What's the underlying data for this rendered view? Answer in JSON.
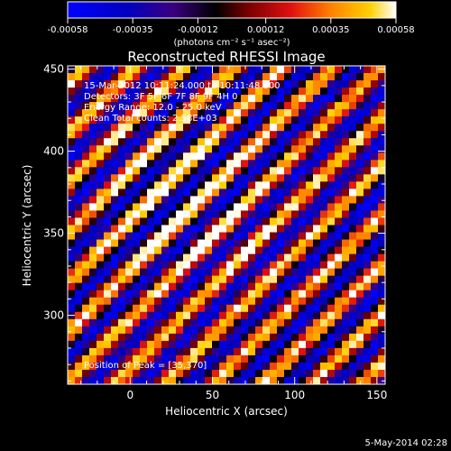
{
  "chart_data": {
    "type": "heatmap",
    "title": "Reconstructed RHESSI Image",
    "xlabel": "Heliocentric X (arcsec)",
    "ylabel": "Heliocentric Y (arcsec)",
    "xlim": [
      -38,
      155
    ],
    "ylim": [
      258,
      452
    ],
    "xticks": [
      0,
      50,
      100,
      150
    ],
    "yticks": [
      300,
      350,
      400,
      450
    ],
    "colorbar": {
      "min": -0.00058,
      "max": 0.00058,
      "ticks": [
        -0.00058,
        -0.00035,
        -0.00012,
        0.00012,
        0.00035,
        0.00058
      ],
      "tick_labels": [
        "-0.00058",
        "-0.00035",
        "-0.00012",
        "0.00012",
        "0.00035",
        "0.00058"
      ],
      "label": "(photons cm⁻² s⁻¹ asec⁻²)"
    },
    "annotations": {
      "line1": "15-Mar-2012 10:11:24.000 to 10:11:48.000",
      "line2": "Detectors: 3F 5F 6F 7F 8F 9F 4H 0",
      "line3": "Energy Range: 12.0 - 25.0 keV",
      "line4": "Clean    Total counts: 2.58E+03",
      "peak": "Position of Peak = [35,370]"
    },
    "peak_position": [
      35,
      370
    ],
    "pattern": "diagonal stripes running from upper-left to lower-right, brightest near peak"
  },
  "footer": {
    "date": "5-May-2014 02:28"
  }
}
